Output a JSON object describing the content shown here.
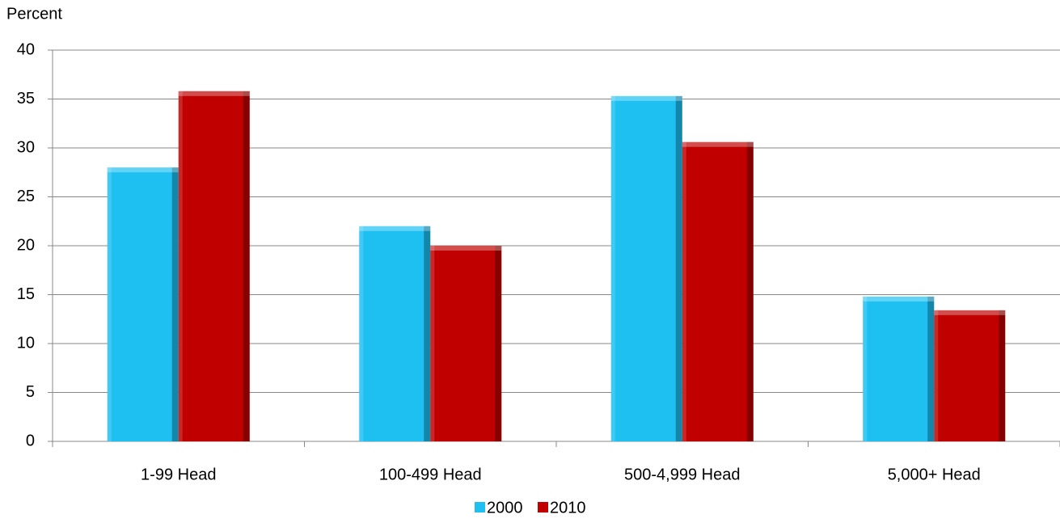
{
  "chart_data": {
    "type": "bar",
    "y_label": "Percent",
    "categories": [
      "1-99 Head",
      "100-499 Head",
      "500-4,999 Head",
      "5,000+ Head"
    ],
    "series": [
      {
        "name": "2000",
        "color": "#1ec0f2",
        "values": [
          28,
          22,
          35.3,
          14.8
        ]
      },
      {
        "name": "2010",
        "color": "#c00000",
        "values": [
          35.8,
          20,
          30.6,
          13.4
        ]
      }
    ],
    "ylim": [
      0,
      40
    ],
    "yticks": [
      0,
      5,
      10,
      15,
      20,
      25,
      30,
      35,
      40
    ],
    "grid": true,
    "legend": "bottom"
  }
}
